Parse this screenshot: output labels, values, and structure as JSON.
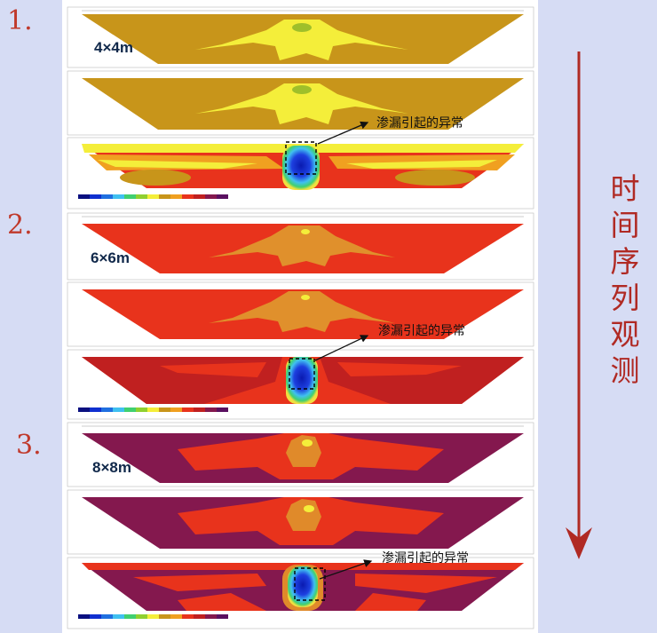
{
  "steps": [
    {
      "number": "1.",
      "grid_size": "4×4m",
      "anomaly_label": "渗漏引起的异常"
    },
    {
      "number": "2.",
      "grid_size": "6×6m",
      "anomaly_label": "渗漏引起的异常"
    },
    {
      "number": "3.",
      "grid_size": "8×8m",
      "anomaly_label": "渗漏引起的异常"
    }
  ],
  "time_label_chars": [
    "时",
    "间",
    "序",
    "列",
    "观",
    "测"
  ],
  "colors": {
    "background": "#d6dcf4",
    "arrow": "#b02a24",
    "step_number": "#c0392b",
    "size_label": "#10284a",
    "set1_base": "#c8951a",
    "set1_core": "#f4ee3a",
    "set2_base": "#e8331c",
    "set2_core": "#e0902c",
    "set3_base": "#84184e",
    "set3_mid": "#e8331c",
    "set3_core": "#e08a2a",
    "anomaly_blue": "#1030d0",
    "anomaly_cyan": "#40c0f0"
  }
}
